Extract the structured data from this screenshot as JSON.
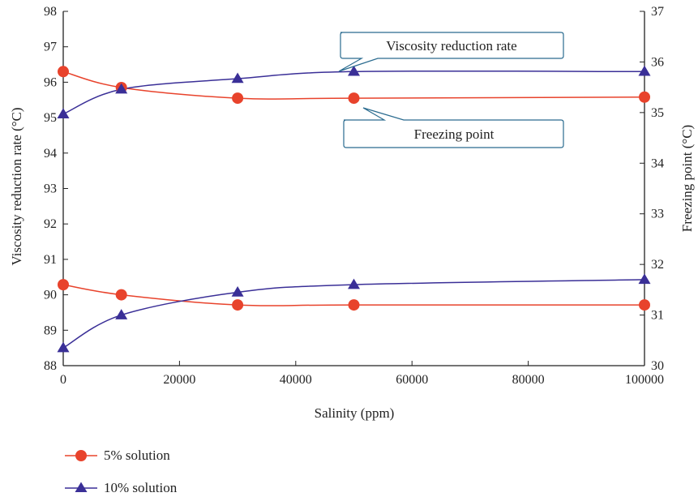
{
  "chart_data": {
    "type": "line",
    "xlabel": "Salinity (ppm)",
    "ylabel_left": "Viscosity reduction rate (°C)",
    "ylabel_right": "Freezing point (°C)",
    "x_ticks": [
      "0",
      "20000",
      "40000",
      "60000",
      "80000",
      "100000"
    ],
    "y_left_ticks": [
      "88",
      "89",
      "90",
      "91",
      "92",
      "93",
      "94",
      "95",
      "96",
      "97",
      "98"
    ],
    "y_right_ticks": [
      "30",
      "31",
      "32",
      "33",
      "34",
      "35",
      "36",
      "37"
    ],
    "xlim": [
      0,
      100000
    ],
    "ylim_left": [
      88,
      98
    ],
    "ylim_right": [
      30,
      37
    ],
    "x": [
      0,
      10000,
      30000,
      50000,
      100000
    ],
    "series": [
      {
        "name": "5% solution",
        "marker": "circle",
        "color": "#e8432c",
        "viscosity_reduction_rate": [
          96.3,
          95.85,
          95.55,
          95.55,
          95.58
        ],
        "freezing_point": [
          31.6,
          31.4,
          31.2,
          31.2,
          31.2
        ]
      },
      {
        "name": "10% solution",
        "marker": "triangle",
        "color": "#3a2f97",
        "viscosity_reduction_rate": [
          95.1,
          95.8,
          96.1,
          96.3,
          96.3
        ],
        "freezing_point": [
          30.35,
          31.0,
          31.45,
          31.6,
          31.7
        ]
      }
    ],
    "annotations": [
      {
        "text": "Viscosity reduction rate"
      },
      {
        "text": "Freezing point"
      }
    ],
    "legend_position": "bottom-left",
    "grid": false
  }
}
